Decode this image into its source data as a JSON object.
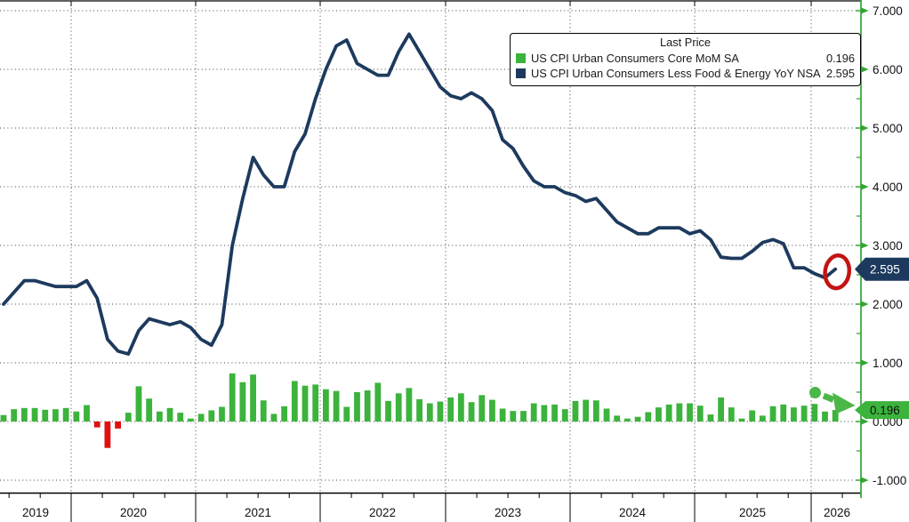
{
  "chart_data": {
    "type": "combo",
    "title": "",
    "frequency": "monthly",
    "grid": true,
    "legend": {
      "title": "Last Price",
      "position": "top-right"
    },
    "series": [
      {
        "name": "US CPI Urban Consumers Core MoM SA",
        "type": "bar",
        "color": "#3cb33c",
        "negative_color": "#dd1111",
        "last_price": "0.196",
        "values": [
          0.11,
          0.21,
          0.23,
          0.23,
          0.2,
          0.21,
          0.23,
          0.17,
          0.28,
          -0.1,
          -0.45,
          -0.12,
          0.15,
          0.6,
          0.39,
          0.17,
          0.23,
          0.15,
          0.05,
          0.13,
          0.19,
          0.25,
          0.82,
          0.67,
          0.8,
          0.36,
          0.13,
          0.26,
          0.69,
          0.61,
          0.63,
          0.55,
          0.52,
          0.25,
          0.5,
          0.53,
          0.66,
          0.35,
          0.48,
          0.57,
          0.38,
          0.31,
          0.34,
          0.41,
          0.48,
          0.33,
          0.45,
          0.37,
          0.22,
          0.18,
          0.18,
          0.31,
          0.28,
          0.29,
          0.21,
          0.35,
          0.37,
          0.36,
          0.22,
          0.1,
          0.05,
          0.08,
          0.16,
          0.24,
          0.29,
          0.31,
          0.31,
          0.27,
          0.12,
          0.41,
          0.24,
          0.05,
          0.19,
          0.1,
          0.26,
          0.29,
          0.24,
          0.27,
          0.3,
          0.17,
          0.196
        ]
      },
      {
        "name": "US CPI Urban Consumers Less Food & Energy YoY NSA",
        "type": "line",
        "color": "#1d3a5e",
        "last_price": "2.595",
        "values": [
          2.0,
          2.2,
          2.4,
          2.4,
          2.35,
          2.3,
          2.3,
          2.3,
          2.4,
          2.1,
          1.4,
          1.2,
          1.15,
          1.55,
          1.75,
          1.7,
          1.65,
          1.7,
          1.6,
          1.4,
          1.3,
          1.65,
          3.0,
          3.8,
          4.5,
          4.2,
          4.0,
          4.0,
          4.6,
          4.9,
          5.5,
          6.0,
          6.4,
          6.5,
          6.1,
          6.0,
          5.9,
          5.9,
          6.3,
          6.6,
          6.3,
          6.0,
          5.7,
          5.55,
          5.5,
          5.6,
          5.5,
          5.3,
          4.8,
          4.65,
          4.35,
          4.1,
          4.0,
          4.0,
          3.9,
          3.85,
          3.75,
          3.8,
          3.6,
          3.4,
          3.3,
          3.2,
          3.2,
          3.3,
          3.3,
          3.3,
          3.2,
          3.25,
          3.1,
          2.8,
          2.78,
          2.78,
          2.9,
          3.05,
          3.1,
          3.03,
          2.62,
          2.62,
          2.52,
          2.45,
          2.595
        ]
      }
    ],
    "x_axis": {
      "years": [
        "2019",
        "2020",
        "2021",
        "2022",
        "2023",
        "2024",
        "2025",
        "2026"
      ]
    },
    "y_axis": {
      "side": "right",
      "min": -1,
      "max": 7,
      "tick_interval": 1,
      "tick_labels": [
        "-1.000",
        "0.000",
        "1.000",
        "2.000",
        "3.000",
        "4.000",
        "5.000",
        "6.000",
        "7.000"
      ],
      "axis_color": "#32a532",
      "label_color": "#111111"
    },
    "badges": [
      {
        "text": "2.595",
        "bg": "#1d3a5e",
        "fg": "#ffffff",
        "series": "line"
      },
      {
        "text": "0.196",
        "bg": "#3cb33c",
        "fg": "#111111",
        "series": "bar"
      }
    ],
    "annotations": [
      {
        "type": "ellipse",
        "color": "#c21414",
        "target": "line-end"
      },
      {
        "type": "dashed-arrow",
        "color": "#4bb747",
        "target": "bar-end"
      }
    ]
  }
}
